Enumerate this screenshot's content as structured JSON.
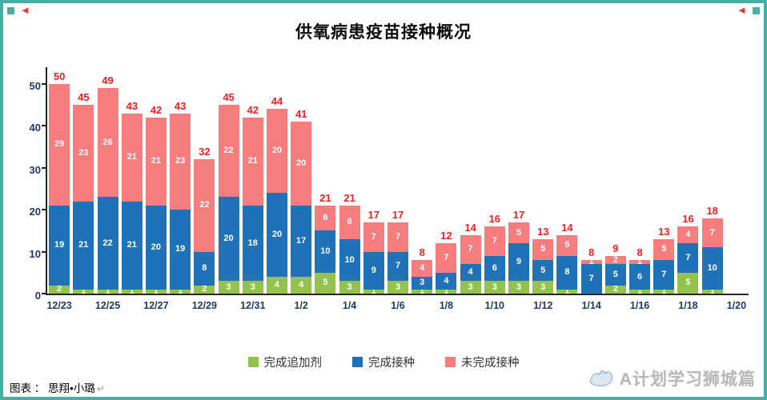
{
  "page": {
    "background": "#ffffff",
    "frame_color": "#45b0a6"
  },
  "decorations": {
    "corner_arrow_color": "#e23a34",
    "corner_square_color": "#45b0a6"
  },
  "chart_data": {
    "type": "bar",
    "stacked": true,
    "title": "供氧病患疫苗接种概况",
    "categories": [
      "12/23",
      "12/24",
      "12/25",
      "12/26",
      "12/27",
      "12/28",
      "12/29",
      "12/30",
      "12/31",
      "1/1",
      "1/2",
      "1/3",
      "1/4",
      "1/5",
      "1/6",
      "1/7",
      "1/8",
      "1/9",
      "1/10",
      "1/11",
      "1/12",
      "1/13",
      "1/14",
      "1/15",
      "1/16",
      "1/17",
      "1/18",
      "1/19"
    ],
    "x_tick_labels": [
      "12/23",
      "12/25",
      "12/27",
      "12/29",
      "12/31",
      "1/2",
      "1/4",
      "1/6",
      "1/8",
      "1/10",
      "1/12",
      "1/14",
      "1/16",
      "1/18",
      "1/20"
    ],
    "series": [
      {
        "name": "完成追加剂",
        "color": "#94c34d",
        "values": [
          2,
          1,
          1,
          1,
          1,
          1,
          2,
          3,
          3,
          4,
          4,
          5,
          3,
          1,
          3,
          1,
          1,
          3,
          3,
          3,
          3,
          1,
          0,
          2,
          1,
          1,
          5,
          1
        ]
      },
      {
        "name": "完成接种",
        "color": "#1f72b8",
        "values": [
          19,
          21,
          22,
          21,
          20,
          19,
          8,
          20,
          18,
          20,
          17,
          10,
          10,
          9,
          7,
          3,
          4,
          4,
          6,
          9,
          5,
          8,
          7,
          5,
          6,
          7,
          7,
          10
        ]
      },
      {
        "name": "未完成接种",
        "color": "#f57d7d",
        "values": [
          29,
          23,
          26,
          21,
          21,
          23,
          22,
          22,
          21,
          20,
          20,
          6,
          8,
          7,
          7,
          4,
          7,
          7,
          7,
          5,
          5,
          5,
          1,
          2,
          1,
          5,
          4,
          7
        ]
      }
    ],
    "totals": [
      50,
      45,
      49,
      43,
      42,
      43,
      32,
      45,
      42,
      44,
      41,
      21,
      21,
      17,
      17,
      8,
      12,
      14,
      16,
      17,
      13,
      14,
      8,
      9,
      8,
      13,
      16,
      18
    ],
    "total_label_color": "#f81d1d",
    "axis_label_color": "#1f3864",
    "y_ticks": [
      0,
      10,
      20,
      30,
      40,
      50
    ],
    "ylim": [
      0,
      54
    ],
    "grid": false,
    "legend_position": "bottom"
  },
  "footer": {
    "credit": "图表 ： 思翔•小璐",
    "return_mark": "↵"
  },
  "watermark": {
    "text": "A计划学习狮城篇",
    "icon": "hands-icon"
  }
}
